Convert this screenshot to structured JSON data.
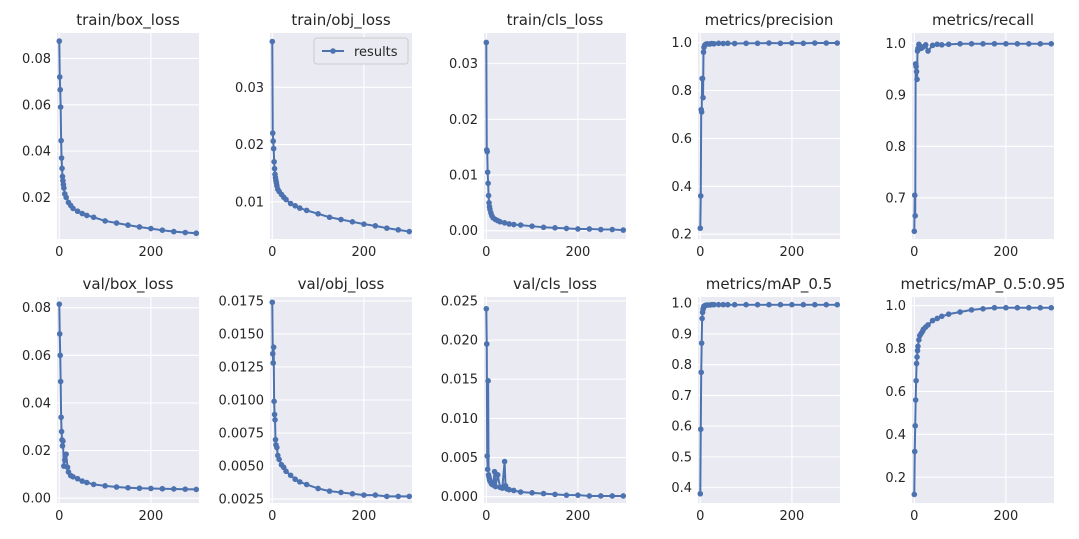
{
  "figure": {
    "legend_label": "results",
    "series_color": "#4c72b0",
    "background_color": "#eaeaf2"
  },
  "chart_data": [
    {
      "type": "line",
      "title": "train/box_loss",
      "xlim": [
        -5,
        305
      ],
      "ylim": [
        0.002,
        0.091
      ],
      "yticks": [
        0.02,
        0.04,
        0.06,
        0.08
      ],
      "ytick_labels": [
        "0.02",
        "0.04",
        "0.06",
        "0.08"
      ],
      "xticks": [
        0,
        200
      ],
      "xtick_labels": [
        "0",
        "200"
      ],
      "x": [
        0,
        1,
        2,
        3,
        4,
        5,
        6,
        7,
        8,
        9,
        10,
        12,
        15,
        20,
        25,
        30,
        40,
        50,
        60,
        75,
        100,
        125,
        150,
        175,
        200,
        225,
        250,
        275,
        299
      ],
      "y": [
        0.0875,
        0.072,
        0.0665,
        0.059,
        0.0445,
        0.037,
        0.0325,
        0.029,
        0.0272,
        0.0255,
        0.024,
        0.0215,
        0.02,
        0.0178,
        0.0165,
        0.0152,
        0.014,
        0.013,
        0.0122,
        0.0114,
        0.0098,
        0.0089,
        0.008,
        0.0072,
        0.0065,
        0.0058,
        0.0052,
        0.0048,
        0.0045
      ]
    },
    {
      "type": "line",
      "title": "train/obj_loss",
      "legend": "results",
      "xlim": [
        -5,
        305
      ],
      "ylim": [
        0.0035,
        0.0395
      ],
      "yticks": [
        0.01,
        0.02,
        0.03
      ],
      "ytick_labels": [
        "0.01",
        "0.02",
        "0.03"
      ],
      "xticks": [
        0,
        200
      ],
      "xtick_labels": [
        "0",
        "200"
      ],
      "x": [
        0,
        1,
        2,
        3,
        4,
        5,
        6,
        7,
        8,
        9,
        10,
        12,
        15,
        20,
        25,
        30,
        40,
        50,
        60,
        75,
        100,
        125,
        150,
        175,
        200,
        225,
        250,
        275,
        299
      ],
      "y": [
        0.038,
        0.022,
        0.0206,
        0.0193,
        0.017,
        0.0158,
        0.0148,
        0.0142,
        0.0137,
        0.0133,
        0.0128,
        0.0122,
        0.0118,
        0.0113,
        0.0108,
        0.0104,
        0.0097,
        0.0093,
        0.0089,
        0.0085,
        0.0079,
        0.0073,
        0.0069,
        0.0065,
        0.0061,
        0.0058,
        0.0054,
        0.0051,
        0.0048
      ]
    },
    {
      "type": "line",
      "title": "train/cls_loss",
      "xlim": [
        -5,
        305
      ],
      "ylim": [
        -0.0015,
        0.0355
      ],
      "yticks": [
        0.0,
        0.01,
        0.02,
        0.03
      ],
      "ytick_labels": [
        "0.00",
        "0.01",
        "0.02",
        "0.03"
      ],
      "xticks": [
        0,
        200
      ],
      "xtick_labels": [
        "0",
        "200"
      ],
      "x": [
        0,
        1,
        2,
        3,
        4,
        5,
        6,
        7,
        8,
        10,
        12,
        15,
        20,
        25,
        30,
        40,
        50,
        60,
        75,
        100,
        125,
        150,
        175,
        200,
        225,
        250,
        275,
        299
      ],
      "y": [
        0.0338,
        0.0145,
        0.0142,
        0.0105,
        0.0085,
        0.0063,
        0.005,
        0.0043,
        0.0038,
        0.0032,
        0.0027,
        0.0023,
        0.002,
        0.0018,
        0.0016,
        0.0014,
        0.0012,
        0.0011,
        0.001,
        0.0008,
        0.0006,
        0.0005,
        0.0004,
        0.0003,
        0.0003,
        0.0002,
        0.0002,
        0.0001
      ]
    },
    {
      "type": "line",
      "title": "metrics/precision",
      "xlim": [
        -5,
        305
      ],
      "ylim": [
        0.18,
        1.04
      ],
      "yticks": [
        0.2,
        0.4,
        0.6,
        0.8,
        1.0
      ],
      "ytick_labels": [
        "0.2",
        "0.4",
        "0.6",
        "0.8",
        "1.0"
      ],
      "xticks": [
        0,
        200
      ],
      "xtick_labels": [
        "0",
        "200"
      ],
      "x": [
        0,
        1,
        2,
        3,
        4,
        5,
        6,
        7,
        8,
        10,
        12,
        15,
        20,
        25,
        30,
        40,
        50,
        60,
        75,
        100,
        125,
        150,
        175,
        200,
        225,
        250,
        275,
        299
      ],
      "y": [
        0.225,
        0.36,
        0.72,
        0.71,
        0.85,
        0.85,
        0.77,
        0.96,
        0.98,
        0.99,
        0.993,
        0.995,
        0.994,
        0.996,
        0.995,
        0.997,
        0.996,
        0.997,
        0.996,
        0.997,
        0.997,
        0.998,
        0.997,
        0.998,
        0.997,
        0.998,
        0.998,
        0.998
      ]
    },
    {
      "type": "line",
      "title": "metrics/recall",
      "xlim": [
        -5,
        305
      ],
      "ylim": [
        0.62,
        1.02
      ],
      "yticks": [
        0.7,
        0.8,
        0.9,
        1.0
      ],
      "ytick_labels": [
        "0.7",
        "0.8",
        "0.9",
        "1.0"
      ],
      "xticks": [
        0,
        200
      ],
      "xtick_labels": [
        "0",
        "200"
      ],
      "x": [
        0,
        1,
        2,
        3,
        4,
        5,
        6,
        7,
        8,
        10,
        12,
        15,
        20,
        25,
        30,
        40,
        50,
        60,
        75,
        100,
        125,
        150,
        175,
        200,
        225,
        250,
        275,
        299
      ],
      "y": [
        0.635,
        0.705,
        0.665,
        0.96,
        0.955,
        0.945,
        0.93,
        0.985,
        0.99,
        0.998,
        0.995,
        0.99,
        0.993,
        0.997,
        0.985,
        0.996,
        0.998,
        0.997,
        0.998,
        0.999,
        0.999,
        0.999,
        0.999,
        0.999,
        0.999,
        0.999,
        0.999,
        0.999
      ]
    },
    {
      "type": "line",
      "title": "val/box_loss",
      "xlim": [
        -5,
        305
      ],
      "ylim": [
        -0.002,
        0.0845
      ],
      "yticks": [
        0.0,
        0.02,
        0.04,
        0.06,
        0.08
      ],
      "ytick_labels": [
        "0.00",
        "0.02",
        "0.04",
        "0.06",
        "0.08"
      ],
      "xticks": [
        0,
        200
      ],
      "xtick_labels": [
        "0",
        "200"
      ],
      "x": [
        0,
        1,
        2,
        3,
        4,
        5,
        6,
        7,
        8,
        10,
        12,
        15,
        18,
        20,
        25,
        30,
        40,
        50,
        60,
        75,
        100,
        125,
        150,
        175,
        200,
        225,
        250,
        275,
        299
      ],
      "y": [
        0.0815,
        0.069,
        0.06,
        0.049,
        0.034,
        0.028,
        0.0245,
        0.022,
        0.024,
        0.0135,
        0.016,
        0.0185,
        0.013,
        0.011,
        0.0095,
        0.009,
        0.0082,
        0.0072,
        0.0066,
        0.0058,
        0.0052,
        0.0047,
        0.0044,
        0.0042,
        0.0041,
        0.004,
        0.0039,
        0.0038,
        0.0037
      ]
    },
    {
      "type": "line",
      "title": "val/obj_loss",
      "xlim": [
        -5,
        305
      ],
      "ylim": [
        0.0022,
        0.0178
      ],
      "yticks": [
        0.0025,
        0.005,
        0.0075,
        0.01,
        0.0125,
        0.015,
        0.0175
      ],
      "ytick_labels": [
        "0.0025",
        "0.0050",
        "0.0075",
        "0.0100",
        "0.0125",
        "0.0150",
        "0.0175"
      ],
      "xticks": [
        0,
        200
      ],
      "xtick_labels": [
        "0",
        "200"
      ],
      "x": [
        0,
        1,
        2,
        3,
        4,
        5,
        6,
        7,
        8,
        10,
        12,
        15,
        20,
        25,
        30,
        40,
        50,
        60,
        75,
        100,
        125,
        150,
        175,
        200,
        225,
        250,
        275,
        299
      ],
      "y": [
        0.0174,
        0.0135,
        0.0128,
        0.014,
        0.0099,
        0.0089,
        0.0085,
        0.007,
        0.0066,
        0.0064,
        0.0058,
        0.0055,
        0.0051,
        0.0049,
        0.0046,
        0.0043,
        0.004,
        0.0038,
        0.0036,
        0.0033,
        0.0031,
        0.003,
        0.0029,
        0.0028,
        0.0028,
        0.0027,
        0.0027,
        0.0027
      ]
    },
    {
      "type": "line",
      "title": "val/cls_loss",
      "xlim": [
        -5,
        305
      ],
      "ylim": [
        -0.0008,
        0.0255
      ],
      "yticks": [
        0.0,
        0.005,
        0.01,
        0.015,
        0.02,
        0.025
      ],
      "ytick_labels": [
        "0.000",
        "0.005",
        "0.010",
        "0.015",
        "0.020",
        "0.025"
      ],
      "xticks": [
        0,
        200
      ],
      "xtick_labels": [
        "0",
        "200"
      ],
      "x": [
        0,
        1,
        2,
        3,
        4,
        5,
        6,
        7,
        8,
        10,
        12,
        15,
        18,
        20,
        25,
        30,
        35,
        40,
        42,
        45,
        50,
        60,
        75,
        100,
        125,
        150,
        175,
        200,
        225,
        250,
        275,
        299
      ],
      "y": [
        0.024,
        0.0195,
        0.0052,
        0.0035,
        0.0148,
        0.0028,
        0.0025,
        0.0022,
        0.002,
        0.0018,
        0.0016,
        0.0015,
        0.0032,
        0.0013,
        0.0028,
        0.0012,
        0.0011,
        0.0045,
        0.0014,
        0.001,
        0.0009,
        0.0008,
        0.0006,
        0.0005,
        0.0004,
        0.0003,
        0.0002,
        0.0002,
        0.0001,
        0.0001,
        0.0001,
        0.0001
      ]
    },
    {
      "type": "line",
      "title": "metrics/mAP_0.5",
      "xlim": [
        -5,
        305
      ],
      "ylim": [
        0.35,
        1.02
      ],
      "yticks": [
        0.4,
        0.5,
        0.6,
        0.7,
        0.8,
        0.9,
        1.0
      ],
      "ytick_labels": [
        "0.4",
        "0.5",
        "0.6",
        "0.7",
        "0.8",
        "0.9",
        "1.0"
      ],
      "xticks": [
        0,
        200
      ],
      "xtick_labels": [
        "0",
        "200"
      ],
      "x": [
        0,
        1,
        2,
        3,
        4,
        5,
        6,
        7,
        8,
        10,
        12,
        15,
        20,
        25,
        30,
        40,
        50,
        60,
        75,
        100,
        125,
        150,
        175,
        200,
        225,
        250,
        275,
        299
      ],
      "y": [
        0.38,
        0.59,
        0.775,
        0.87,
        0.95,
        0.97,
        0.98,
        0.985,
        0.99,
        0.992,
        0.993,
        0.994,
        0.994,
        0.995,
        0.995,
        0.995,
        0.995,
        0.995,
        0.995,
        0.995,
        0.995,
        0.995,
        0.995,
        0.995,
        0.995,
        0.995,
        0.995,
        0.995
      ]
    },
    {
      "type": "line",
      "title": "metrics/mAP_0.5:0.95",
      "xlim": [
        -5,
        305
      ],
      "ylim": [
        0.08,
        1.04
      ],
      "yticks": [
        0.2,
        0.4,
        0.6,
        0.8,
        1.0
      ],
      "ytick_labels": [
        "0.2",
        "0.4",
        "0.6",
        "0.8",
        "1.0"
      ],
      "xticks": [
        0,
        200
      ],
      "xtick_labels": [
        "0",
        "200"
      ],
      "x": [
        0,
        1,
        2,
        3,
        4,
        5,
        6,
        7,
        8,
        10,
        12,
        15,
        18,
        20,
        25,
        30,
        40,
        50,
        60,
        75,
        100,
        125,
        150,
        175,
        200,
        225,
        250,
        275,
        299
      ],
      "y": [
        0.12,
        0.32,
        0.44,
        0.56,
        0.65,
        0.73,
        0.76,
        0.79,
        0.81,
        0.84,
        0.86,
        0.87,
        0.88,
        0.89,
        0.9,
        0.91,
        0.93,
        0.94,
        0.95,
        0.96,
        0.97,
        0.98,
        0.985,
        0.99,
        0.99,
        0.99,
        0.99,
        0.99,
        0.99
      ]
    }
  ]
}
